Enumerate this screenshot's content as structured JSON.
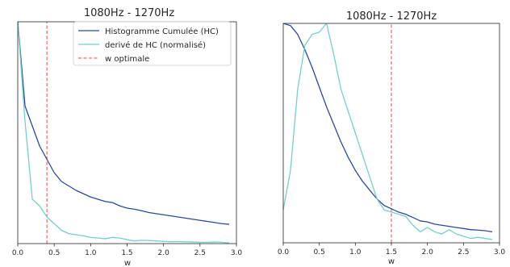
{
  "figure": {
    "colors": {
      "hc": "#2c4a9e",
      "derive": "#74d0cc",
      "optimal": "#e8474b",
      "axis": "#262626"
    }
  },
  "chart_data": [
    {
      "type": "line",
      "title": "1080Hz - 1270Hz",
      "xlabel": "w",
      "ylabel": "",
      "xlim": [
        0.0,
        3.0
      ],
      "ylim": [
        0.0,
        1.0
      ],
      "xticks": [
        "0.0",
        "0.5",
        "1.0",
        "1.5",
        "2.0",
        "2.5",
        "3.0"
      ],
      "grid": false,
      "legend": {
        "placement": "top-right",
        "entries": [
          "Histogramme Cumulée (HC)",
          "derivé de HC (normalisé)",
          "w optimale"
        ]
      },
      "series": [
        {
          "name": "Histogramme Cumulée (HC)",
          "color": "#2c4a9e",
          "x": [
            0.0,
            0.1,
            0.2,
            0.3,
            0.4,
            0.5,
            0.6,
            0.7,
            0.8,
            0.9,
            1.0,
            1.1,
            1.2,
            1.3,
            1.4,
            1.5,
            1.6,
            1.7,
            1.8,
            1.9,
            2.0,
            2.1,
            2.2,
            2.3,
            2.4,
            2.5,
            2.6,
            2.7,
            2.8,
            2.9
          ],
          "y": [
            1.0,
            0.62,
            0.53,
            0.44,
            0.38,
            0.32,
            0.28,
            0.26,
            0.24,
            0.225,
            0.21,
            0.2,
            0.19,
            0.185,
            0.17,
            0.16,
            0.155,
            0.148,
            0.14,
            0.135,
            0.13,
            0.125,
            0.12,
            0.115,
            0.11,
            0.105,
            0.1,
            0.095,
            0.09,
            0.087
          ]
        },
        {
          "name": "derivé de HC (normalisé)",
          "color": "#74d0cc",
          "x": [
            0.0,
            0.1,
            0.2,
            0.3,
            0.4,
            0.5,
            0.6,
            0.7,
            0.8,
            0.9,
            1.0,
            1.1,
            1.2,
            1.3,
            1.4,
            1.5,
            1.6,
            1.7,
            1.8,
            1.9,
            2.0,
            2.1,
            2.2,
            2.3,
            2.4,
            2.5,
            2.6,
            2.7,
            2.8,
            2.9
          ],
          "y": [
            1.0,
            0.55,
            0.2,
            0.17,
            0.12,
            0.09,
            0.06,
            0.045,
            0.04,
            0.035,
            0.028,
            0.025,
            0.022,
            0.028,
            0.025,
            0.018,
            0.012,
            0.015,
            0.014,
            0.012,
            0.01,
            0.008,
            0.009,
            0.008,
            0.007,
            0.006,
            0.006,
            0.007,
            0.006,
            0.003
          ]
        },
        {
          "name": "w optimale",
          "color": "#e8474b",
          "style": "dashed",
          "x": [
            0.4,
            0.4
          ],
          "y": [
            0.0,
            1.0
          ]
        }
      ]
    },
    {
      "type": "line",
      "title": "1080Hz - 1270Hz",
      "xlabel": "w",
      "ylabel": "",
      "xlim": [
        0.0,
        3.0
      ],
      "ylim": [
        0.0,
        1.0
      ],
      "xticks": [
        "0.0",
        "0.5",
        "1.0",
        "1.5",
        "2.0",
        "2.5",
        "3.0"
      ],
      "grid": false,
      "series": [
        {
          "name": "Histogramme Cumulée (HC)",
          "color": "#2c4a9e",
          "x": [
            0.0,
            0.1,
            0.2,
            0.3,
            0.4,
            0.5,
            0.6,
            0.7,
            0.8,
            0.9,
            1.0,
            1.1,
            1.2,
            1.3,
            1.4,
            1.5,
            1.6,
            1.7,
            1.8,
            1.9,
            2.0,
            2.1,
            2.2,
            2.3,
            2.4,
            2.5,
            2.6,
            2.7,
            2.8,
            2.9
          ],
          "y": [
            1.0,
            0.99,
            0.95,
            0.88,
            0.8,
            0.71,
            0.62,
            0.54,
            0.46,
            0.39,
            0.33,
            0.28,
            0.24,
            0.2,
            0.17,
            0.155,
            0.14,
            0.13,
            0.115,
            0.1,
            0.095,
            0.085,
            0.08,
            0.075,
            0.07,
            0.065,
            0.06,
            0.058,
            0.055,
            0.05
          ]
        },
        {
          "name": "derivé de HC (normalisé)",
          "color": "#74d0cc",
          "x": [
            0.0,
            0.1,
            0.2,
            0.3,
            0.4,
            0.5,
            0.6,
            0.7,
            0.8,
            0.9,
            1.0,
            1.1,
            1.2,
            1.3,
            1.4,
            1.5,
            1.6,
            1.7,
            1.8,
            1.9,
            2.0,
            2.1,
            2.2,
            2.3,
            2.4,
            2.5,
            2.6,
            2.7,
            2.8,
            2.9
          ],
          "y": [
            0.15,
            0.33,
            0.7,
            0.9,
            0.95,
            0.96,
            1.0,
            0.86,
            0.7,
            0.6,
            0.5,
            0.4,
            0.3,
            0.2,
            0.15,
            0.14,
            0.13,
            0.12,
            0.08,
            0.05,
            0.07,
            0.05,
            0.04,
            0.06,
            0.04,
            0.03,
            0.02,
            0.025,
            0.02,
            0.015
          ]
        },
        {
          "name": "w optimale",
          "color": "#e8474b",
          "style": "dashed",
          "x": [
            1.5,
            1.5
          ],
          "y": [
            0.0,
            1.0
          ]
        }
      ]
    }
  ]
}
